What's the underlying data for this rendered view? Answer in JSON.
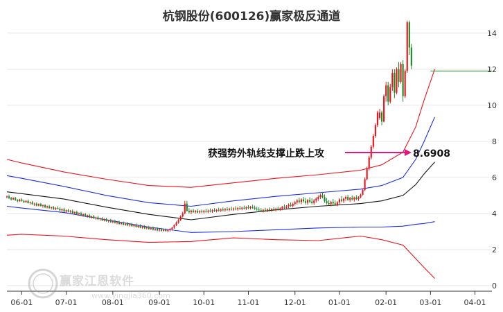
{
  "title": "杭钢股份(600126)赢家极反通道",
  "watermark": {
    "brand": "赢家江恩软件",
    "url": "www.yingjia360.com",
    "logo_text": "赢家"
  },
  "colors": {
    "up": "#e8141c",
    "down": "#168c20",
    "upper_band": "#e8141c",
    "mid_band": "#1a2fe0",
    "lower_band": "#e8141c",
    "center_line": "#111111",
    "grid": "#e6e6e6",
    "annotation": "#e8147a",
    "flat_line": "#168c20"
  },
  "chart_data": {
    "type": "candlestick",
    "title": "杭钢股份(600126)赢家极反通道",
    "y_ticks": [
      0,
      2,
      4,
      6,
      8,
      10,
      12,
      14
    ],
    "ylim": [
      0,
      14.3
    ],
    "x_ticks": [
      "06-01",
      "07-01",
      "08-01",
      "09-01",
      "10-01",
      "11-01",
      "12-01",
      "01-01",
      "02-01",
      "03-01",
      "04-01"
    ],
    "x_tick_index": [
      0,
      21,
      43,
      65,
      86,
      107,
      129,
      150,
      172,
      193,
      214
    ],
    "x_range": [
      -7,
      222
    ],
    "grid": true,
    "ohlc_start_index": -7,
    "ohlc": [
      [
        4.9,
        5.0,
        4.85,
        4.95
      ],
      [
        4.95,
        5.05,
        4.8,
        4.85
      ],
      [
        4.85,
        4.92,
        4.72,
        4.78
      ],
      [
        4.78,
        4.9,
        4.75,
        4.86
      ],
      [
        4.86,
        4.92,
        4.7,
        4.74
      ],
      [
        4.74,
        4.8,
        4.62,
        4.68
      ],
      [
        4.68,
        4.82,
        4.65,
        4.78
      ],
      [
        4.78,
        4.85,
        4.66,
        4.7
      ],
      [
        4.7,
        4.76,
        4.58,
        4.62
      ],
      [
        4.62,
        4.74,
        4.6,
        4.7
      ],
      [
        4.7,
        4.78,
        4.55,
        4.58
      ],
      [
        4.58,
        4.66,
        4.5,
        4.62
      ],
      [
        4.62,
        4.7,
        4.48,
        4.52
      ],
      [
        4.52,
        4.6,
        4.42,
        4.55
      ],
      [
        4.55,
        4.62,
        4.4,
        4.44
      ],
      [
        4.44,
        4.56,
        4.4,
        4.52
      ],
      [
        4.52,
        4.58,
        4.38,
        4.42
      ],
      [
        4.42,
        4.5,
        4.32,
        4.46
      ],
      [
        4.46,
        4.52,
        4.3,
        4.34
      ],
      [
        4.34,
        4.44,
        4.28,
        4.4
      ],
      [
        4.4,
        4.48,
        4.26,
        4.3
      ],
      [
        4.3,
        4.38,
        4.22,
        4.34
      ],
      [
        4.34,
        4.42,
        4.2,
        4.24
      ],
      [
        4.24,
        4.36,
        4.18,
        4.3
      ],
      [
        4.3,
        4.4,
        4.22,
        4.26
      ],
      [
        4.26,
        4.34,
        4.12,
        4.18
      ],
      [
        4.18,
        4.28,
        4.1,
        4.24
      ],
      [
        4.24,
        4.32,
        4.08,
        4.12
      ],
      [
        4.12,
        4.22,
        4.04,
        4.18
      ],
      [
        4.18,
        4.26,
        4.06,
        4.1
      ],
      [
        4.1,
        4.2,
        4.0,
        4.14
      ],
      [
        4.14,
        4.22,
        3.98,
        4.02
      ],
      [
        4.02,
        4.12,
        3.94,
        4.08
      ],
      [
        4.08,
        4.16,
        3.92,
        3.96
      ],
      [
        3.96,
        4.06,
        3.88,
        4.02
      ],
      [
        4.02,
        4.1,
        3.86,
        3.9
      ],
      [
        3.9,
        4.0,
        3.82,
        3.96
      ],
      [
        3.96,
        4.04,
        3.8,
        3.84
      ],
      [
        3.84,
        3.94,
        3.76,
        3.9
      ],
      [
        3.9,
        3.98,
        3.74,
        3.78
      ],
      [
        3.78,
        3.88,
        3.72,
        3.84
      ],
      [
        3.84,
        3.92,
        3.7,
        3.74
      ],
      [
        3.74,
        3.82,
        3.66,
        3.78
      ],
      [
        3.78,
        3.86,
        3.64,
        3.68
      ],
      [
        3.68,
        3.76,
        3.6,
        3.72
      ],
      [
        3.72,
        3.8,
        3.58,
        3.62
      ],
      [
        3.62,
        3.72,
        3.56,
        3.68
      ],
      [
        3.68,
        3.76,
        3.54,
        3.58
      ],
      [
        3.58,
        3.66,
        3.5,
        3.62
      ],
      [
        3.62,
        3.7,
        3.48,
        3.52
      ],
      [
        3.52,
        3.62,
        3.46,
        3.58
      ],
      [
        3.58,
        3.66,
        3.44,
        3.48
      ],
      [
        3.48,
        3.56,
        3.4,
        3.52
      ],
      [
        3.52,
        3.6,
        3.38,
        3.42
      ],
      [
        3.42,
        3.52,
        3.36,
        3.48
      ],
      [
        3.48,
        3.56,
        3.34,
        3.38
      ],
      [
        3.38,
        3.48,
        3.32,
        3.44
      ],
      [
        3.44,
        3.52,
        3.3,
        3.34
      ],
      [
        3.34,
        3.44,
        3.28,
        3.4
      ],
      [
        3.4,
        3.48,
        3.26,
        3.3
      ],
      [
        3.3,
        3.4,
        3.24,
        3.36
      ],
      [
        3.36,
        3.44,
        3.22,
        3.26
      ],
      [
        3.26,
        3.36,
        3.2,
        3.32
      ],
      [
        3.32,
        3.4,
        3.18,
        3.22
      ],
      [
        3.22,
        3.32,
        3.16,
        3.28
      ],
      [
        3.28,
        3.36,
        3.14,
        3.18
      ],
      [
        3.18,
        3.28,
        3.12,
        3.24
      ],
      [
        3.24,
        3.32,
        3.1,
        3.14
      ],
      [
        3.14,
        3.24,
        3.08,
        3.2
      ],
      [
        3.2,
        3.28,
        3.06,
        3.1
      ],
      [
        3.1,
        3.2,
        3.04,
        3.16
      ],
      [
        3.16,
        3.24,
        3.02,
        3.06
      ],
      [
        3.06,
        3.16,
        3.0,
        3.12
      ],
      [
        3.12,
        3.2,
        3.0,
        3.04
      ],
      [
        3.04,
        3.14,
        3.0,
        3.1
      ],
      [
        3.1,
        3.18,
        3.0,
        3.02
      ],
      [
        3.02,
        3.12,
        2.98,
        3.08
      ],
      [
        3.08,
        3.18,
        3.0,
        3.14
      ],
      [
        3.14,
        3.26,
        3.06,
        3.22
      ],
      [
        3.22,
        3.4,
        3.16,
        3.36
      ],
      [
        3.36,
        3.56,
        3.3,
        3.5
      ],
      [
        3.5,
        3.7,
        3.44,
        3.64
      ],
      [
        3.64,
        3.9,
        3.58,
        3.84
      ],
      [
        3.84,
        4.1,
        3.78,
        4.02
      ],
      [
        4.02,
        4.7,
        3.96,
        4.55
      ],
      [
        4.55,
        4.7,
        4.1,
        4.15
      ],
      [
        4.15,
        4.3,
        4.0,
        4.08
      ],
      [
        4.08,
        4.22,
        3.96,
        4.16
      ],
      [
        4.16,
        4.26,
        4.04,
        4.08
      ],
      [
        4.08,
        4.2,
        4.0,
        4.14
      ],
      [
        4.14,
        4.24,
        4.02,
        4.06
      ],
      [
        4.06,
        4.18,
        4.0,
        4.12
      ],
      [
        4.12,
        4.22,
        4.02,
        4.08
      ],
      [
        4.08,
        4.2,
        4.0,
        4.14
      ],
      [
        4.14,
        4.26,
        4.04,
        4.1
      ],
      [
        4.1,
        4.22,
        4.02,
        4.16
      ],
      [
        4.16,
        4.28,
        4.06,
        4.12
      ],
      [
        4.12,
        4.24,
        4.04,
        4.18
      ],
      [
        4.18,
        4.3,
        4.08,
        4.14
      ],
      [
        4.14,
        4.26,
        4.06,
        4.2
      ],
      [
        4.2,
        4.32,
        4.1,
        4.16
      ],
      [
        4.16,
        4.28,
        4.08,
        4.22
      ],
      [
        4.22,
        4.34,
        4.12,
        4.18
      ],
      [
        4.18,
        4.3,
        4.1,
        4.24
      ],
      [
        4.24,
        4.36,
        4.14,
        4.2
      ],
      [
        4.2,
        4.32,
        4.12,
        4.26
      ],
      [
        4.26,
        4.38,
        4.16,
        4.22
      ],
      [
        4.22,
        4.34,
        4.14,
        4.28
      ],
      [
        4.28,
        4.4,
        4.18,
        4.24
      ],
      [
        4.24,
        4.36,
        4.16,
        4.3
      ],
      [
        4.3,
        4.42,
        4.2,
        4.26
      ],
      [
        4.26,
        4.38,
        4.18,
        4.32
      ],
      [
        4.32,
        4.44,
        4.22,
        4.28
      ],
      [
        4.28,
        4.4,
        4.2,
        4.34
      ],
      [
        4.34,
        4.46,
        4.24,
        4.3
      ],
      [
        4.3,
        4.42,
        4.22,
        4.36
      ],
      [
        4.36,
        4.48,
        4.26,
        4.32
      ],
      [
        4.32,
        4.44,
        4.2,
        4.26
      ],
      [
        4.26,
        4.38,
        4.16,
        4.22
      ],
      [
        4.22,
        4.34,
        4.12,
        4.18
      ],
      [
        4.18,
        4.3,
        4.08,
        4.14
      ],
      [
        4.14,
        4.26,
        4.06,
        4.2
      ],
      [
        4.2,
        4.32,
        4.1,
        4.16
      ],
      [
        4.16,
        4.28,
        4.08,
        4.22
      ],
      [
        4.22,
        4.34,
        4.12,
        4.18
      ],
      [
        4.18,
        4.3,
        4.1,
        4.24
      ],
      [
        4.24,
        4.36,
        4.14,
        4.2
      ],
      [
        4.2,
        4.32,
        4.12,
        4.26
      ],
      [
        4.26,
        4.38,
        4.16,
        4.22
      ],
      [
        4.22,
        4.34,
        4.14,
        4.28
      ],
      [
        4.28,
        4.42,
        4.18,
        4.36
      ],
      [
        4.36,
        4.5,
        4.26,
        4.32
      ],
      [
        4.32,
        4.46,
        4.22,
        4.4
      ],
      [
        4.4,
        4.56,
        4.3,
        4.48
      ],
      [
        4.48,
        4.62,
        4.36,
        4.42
      ],
      [
        4.42,
        4.6,
        4.34,
        4.54
      ],
      [
        4.54,
        4.7,
        4.44,
        4.62
      ],
      [
        4.62,
        4.8,
        4.5,
        4.72
      ],
      [
        4.72,
        4.88,
        4.56,
        4.64
      ],
      [
        4.64,
        4.84,
        4.52,
        4.78
      ],
      [
        4.78,
        4.92,
        4.6,
        4.68
      ],
      [
        4.68,
        4.86,
        4.5,
        4.6
      ],
      [
        4.6,
        4.8,
        4.48,
        4.74
      ],
      [
        4.74,
        4.9,
        4.58,
        4.66
      ],
      [
        4.66,
        4.84,
        4.5,
        4.58
      ],
      [
        4.58,
        4.8,
        4.48,
        4.72
      ],
      [
        4.72,
        4.9,
        4.6,
        4.82
      ],
      [
        4.82,
        5.0,
        4.7,
        4.92
      ],
      [
        4.92,
        5.1,
        4.8,
        5.02
      ],
      [
        5.02,
        5.2,
        4.84,
        4.9
      ],
      [
        4.9,
        5.06,
        4.6,
        4.68
      ],
      [
        4.68,
        4.86,
        4.5,
        4.58
      ],
      [
        4.58,
        4.74,
        4.44,
        4.52
      ],
      [
        4.52,
        4.7,
        4.4,
        4.64
      ],
      [
        4.64,
        4.8,
        4.48,
        4.56
      ],
      [
        4.56,
        4.72,
        4.42,
        4.5
      ],
      [
        4.5,
        4.68,
        4.4,
        4.62
      ],
      [
        4.62,
        4.84,
        4.52,
        4.78
      ],
      [
        4.78,
        4.96,
        4.62,
        4.7
      ],
      [
        4.7,
        4.88,
        4.58,
        4.82
      ],
      [
        4.82,
        5.0,
        4.7,
        4.92
      ],
      [
        4.92,
        5.04,
        4.7,
        4.76
      ],
      [
        4.76,
        4.92,
        4.64,
        4.86
      ],
      [
        4.86,
        5.0,
        4.72,
        4.78
      ],
      [
        4.78,
        4.94,
        4.66,
        4.88
      ],
      [
        4.88,
        5.02,
        4.74,
        4.8
      ],
      [
        4.8,
        4.96,
        4.7,
        4.9
      ],
      [
        4.9,
        5.1,
        4.84,
        5.04
      ],
      [
        5.04,
        5.4,
        5.0,
        5.3
      ],
      [
        5.3,
        6.0,
        5.24,
        5.9
      ],
      [
        5.9,
        6.6,
        5.84,
        6.5
      ],
      [
        6.5,
        7.2,
        6.4,
        7.1
      ],
      [
        7.1,
        7.8,
        7.0,
        7.7
      ],
      [
        7.7,
        8.4,
        7.6,
        8.3
      ],
      [
        8.3,
        9.0,
        8.2,
        8.9
      ],
      [
        8.9,
        9.7,
        8.8,
        9.6
      ],
      [
        9.3,
        9.8,
        9.2,
        9.6
      ],
      [
        9.6,
        9.7,
        8.9,
        9.1
      ],
      [
        9.1,
        10.6,
        9.05,
        10.5
      ],
      [
        10.5,
        11.3,
        10.2,
        11.1
      ],
      [
        11.1,
        11.3,
        10.0,
        10.2
      ],
      [
        10.2,
        11.2,
        10.1,
        11.0
      ],
      [
        11.0,
        12.0,
        10.8,
        11.8
      ],
      [
        11.8,
        12.0,
        10.4,
        10.7
      ],
      [
        10.7,
        12.1,
        10.6,
        12.0
      ],
      [
        12.0,
        12.4,
        11.0,
        11.3
      ],
      [
        11.3,
        12.4,
        11.2,
        12.3
      ],
      [
        12.3,
        12.5,
        10.2,
        10.5
      ],
      [
        10.5,
        12.0,
        10.4,
        11.9
      ],
      [
        11.9,
        14.7,
        11.8,
        14.6
      ],
      [
        14.6,
        14.7,
        12.8,
        13.2
      ],
      [
        13.2,
        13.4,
        12.0,
        12.2
      ]
    ],
    "flat_line": {
      "value": 11.9,
      "x_from": 193,
      "x_to": 222
    },
    "bands": {
      "x": [
        -7,
        0,
        20,
        40,
        60,
        80,
        100,
        120,
        140,
        160,
        170,
        180,
        186,
        190,
        195
      ],
      "upper": [
        7.0,
        6.8,
        6.3,
        5.9,
        5.55,
        5.45,
        5.7,
        5.95,
        6.15,
        6.4,
        6.7,
        7.4,
        8.8,
        10.3,
        12.0
      ],
      "mid_upper": [
        6.1,
        5.95,
        5.5,
        5.0,
        4.6,
        4.4,
        4.7,
        4.95,
        5.15,
        5.35,
        5.55,
        6.0,
        7.0,
        8.0,
        9.35
      ],
      "center": [
        5.2,
        5.1,
        4.8,
        4.35,
        3.95,
        3.65,
        3.95,
        4.2,
        4.4,
        4.55,
        4.7,
        5.0,
        5.6,
        6.2,
        6.85
      ],
      "mid_lower": [
        4.4,
        4.3,
        4.05,
        3.65,
        3.25,
        2.95,
        3.0,
        3.1,
        3.2,
        3.25,
        3.25,
        3.3,
        3.4,
        3.45,
        3.55
      ],
      "lower": [
        2.8,
        2.85,
        2.75,
        2.55,
        2.4,
        2.45,
        2.65,
        2.55,
        2.5,
        2.75,
        2.55,
        2.25,
        1.5,
        1.0,
        0.4
      ]
    },
    "annotation": {
      "text": "获强势外轨线支撑止跌上攻",
      "value_label": "8.6908",
      "value": 8.6908
    }
  }
}
